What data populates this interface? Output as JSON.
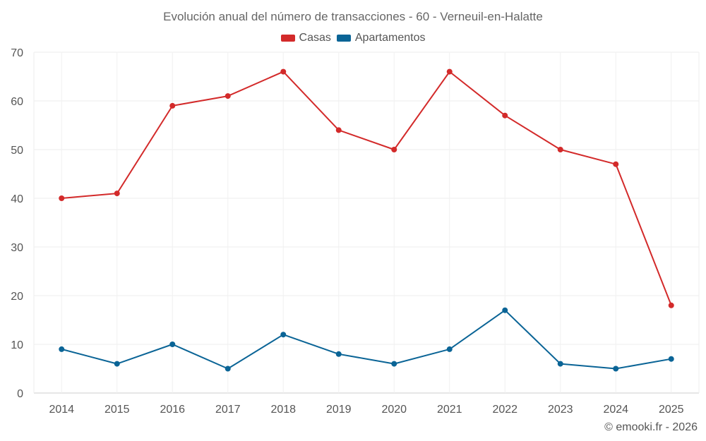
{
  "chart_data": {
    "type": "line",
    "title": "Evolución anual del número de transacciones - 60 - Verneuil-en-Halatte",
    "xlabel": "",
    "ylabel": "",
    "categories": [
      "2014",
      "2015",
      "2016",
      "2017",
      "2018",
      "2019",
      "2020",
      "2021",
      "2022",
      "2023",
      "2024",
      "2025"
    ],
    "ylim": [
      0,
      70
    ],
    "yticks": [
      0,
      10,
      20,
      30,
      40,
      50,
      60,
      70
    ],
    "grid": true,
    "legend_position": "top",
    "series": [
      {
        "name": "Casas",
        "color": "#d32a2a",
        "values": [
          40,
          41,
          59,
          61,
          66,
          54,
          50,
          66,
          57,
          50,
          47,
          18
        ]
      },
      {
        "name": "Apartamentos",
        "color": "#0a6496",
        "values": [
          9,
          6,
          10,
          5,
          12,
          8,
          6,
          9,
          17,
          6,
          5,
          7
        ]
      }
    ]
  },
  "credit": "© emooki.fr - 2026"
}
